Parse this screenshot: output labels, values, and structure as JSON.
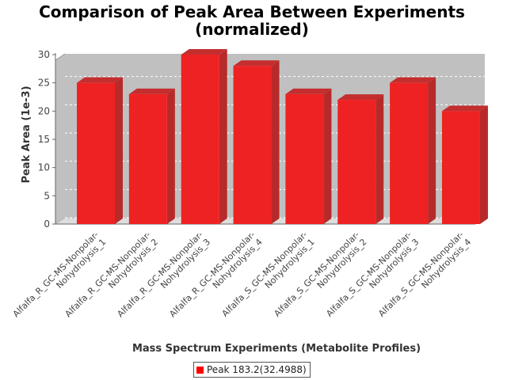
{
  "chart_data": {
    "type": "bar",
    "title_line1": "Comparison of Peak Area Between Experiments",
    "title_line2": "(normalized)",
    "xlabel": "Mass Spectrum Experiments (Metabolite Profiles)",
    "ylabel": "Peak Area (1e-3)",
    "ylim": [
      0,
      30
    ],
    "yticks": [
      "0",
      "5",
      "10",
      "15",
      "20",
      "25",
      "30"
    ],
    "grid": true,
    "legend_position": "bottom-center",
    "categories": [
      [
        "Alfalfa_R_GC-MS-Nonpolar-",
        "Nohydrolysis_1"
      ],
      [
        "Alfalfa_R_GC-MS-Nonpolar-",
        "Nohydrolysis_2"
      ],
      [
        "Alfalfa_R_GC-MS-Nonpolar-",
        "Nohydrolysis_3"
      ],
      [
        "Alfalfa_R_GC-MS-Nonpolar-",
        "Nohydrolysis_4"
      ],
      [
        "Alfalfa_S_GC-MS-Nonpolar-",
        "Nohydrolysis_1"
      ],
      [
        "Alfalfa_S_GC-MS-Nonpolar-",
        "Nohydrolysis_2"
      ],
      [
        "Alfalfa_S_GC-MS-Nonpolar-",
        "Nohydrolysis_3"
      ],
      [
        "Alfalfa_S_GC-MS-Nonpolar-",
        "Nohydrolysis_4"
      ]
    ],
    "series": [
      {
        "name": "Peak 183.2(32.4988)",
        "color": "#ee2222",
        "values": [
          25,
          23,
          30,
          28,
          23,
          22,
          25,
          20
        ]
      }
    ]
  }
}
